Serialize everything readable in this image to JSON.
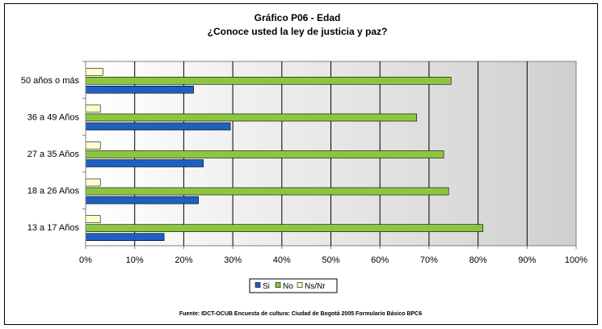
{
  "chart_data": {
    "type": "bar",
    "orientation": "horizontal",
    "title": "Gráfico P06 - Edad",
    "subtitle": "¿Conoce usted la ley de justicia y paz?",
    "categories": [
      "50 años o más",
      "36 a 49 Años",
      "27 a 35 Años",
      "18 a 26 Años",
      "13 a 17 Años"
    ],
    "series": [
      {
        "name": "Si",
        "color": "#1F5FBF",
        "values": [
          22,
          29.5,
          24,
          23,
          16
        ]
      },
      {
        "name": "No",
        "color": "#8CC63F",
        "values": [
          74.5,
          67.5,
          73,
          74,
          81
        ]
      },
      {
        "name": "Ns/Nr",
        "color": "#FFFFCC",
        "values": [
          3.5,
          3,
          3,
          3,
          3
        ]
      }
    ],
    "xlim": [
      0,
      100
    ],
    "x_ticks": [
      "0%",
      "10%",
      "20%",
      "30%",
      "40%",
      "50%",
      "60%",
      "70%",
      "80%",
      "90%",
      "100%"
    ],
    "grid": true,
    "legend_position": "bottom",
    "source": "Fuente: IDCT-OCUB Encuesta de cultura: Ciudad de Bogotá 2005 Formulario Básico  BPC6"
  }
}
